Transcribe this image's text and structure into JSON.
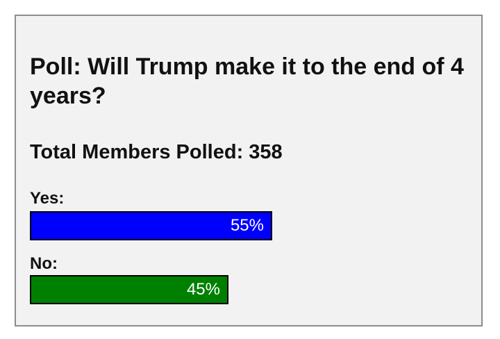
{
  "poll": {
    "title": "Poll: Will Trump make it to the end of 4 years?",
    "total_label": "Total Members Polled: 358",
    "options": [
      {
        "label": "Yes:",
        "percent_text": "55%",
        "percent": 55,
        "color": "#0000ff"
      },
      {
        "label": "No:",
        "percent_text": "45%",
        "percent": 45,
        "color": "#008000"
      }
    ]
  }
}
